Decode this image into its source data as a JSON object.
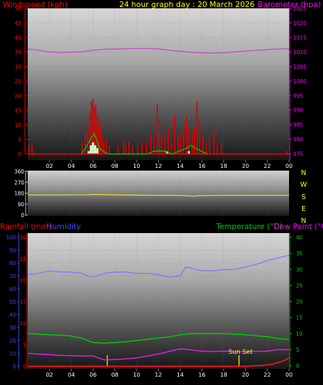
{
  "title": "24 hour graph day : 20 March 2026",
  "colors": {
    "wind": "#ff0000",
    "gust_fill": "#dd0000",
    "wind_avg": "#00cc00",
    "baro": "#cc44cc",
    "dir": "#dddd33",
    "rain": "#ff1111",
    "humidity": "#7777ff",
    "temp": "#00cc00",
    "dew": "#dd22dd",
    "sun": "#dddd00",
    "axis_red": "#ff0000",
    "axis_magenta": "#ff00ff",
    "axis_blue": "#4444ff",
    "axis_green": "#00cc00",
    "axis_yellow": "#ffff00",
    "text_white": "#ffffff"
  },
  "chart_data": [
    {
      "type": "bar",
      "name": "wind-baro",
      "left_label": "Windspeed (kph)",
      "right_label": "Barometer (hpa)",
      "x_ticks": [
        "02",
        "04",
        "06",
        "08",
        "10",
        "12",
        "14",
        "16",
        "18",
        "20",
        "22",
        "00"
      ],
      "x_range": [
        0,
        24
      ],
      "ylim_left": [
        0,
        50
      ],
      "yticks_left": [
        "0",
        "5",
        "10",
        "15",
        "20",
        "25",
        "30",
        "35",
        "40",
        "45",
        "50"
      ],
      "ylim_right": [
        973,
        1025
      ],
      "yticks_right": [
        "975",
        "980",
        "985",
        "990",
        "995",
        "1000",
        "1005",
        "1010",
        "1015",
        "1020",
        "1025"
      ],
      "gust": [
        [
          0.1,
          3
        ],
        [
          0.4,
          3
        ],
        [
          5.0,
          4
        ],
        [
          5.3,
          8
        ],
        [
          5.5,
          10
        ],
        [
          5.7,
          14
        ],
        [
          5.85,
          18
        ],
        [
          6.0,
          19
        ],
        [
          6.1,
          16
        ],
        [
          6.25,
          17
        ],
        [
          6.4,
          13
        ],
        [
          6.55,
          9
        ],
        [
          6.7,
          11
        ],
        [
          6.85,
          6
        ],
        [
          7.0,
          4
        ],
        [
          7.2,
          5
        ],
        [
          7.5,
          3
        ],
        [
          8.3,
          3
        ],
        [
          8.8,
          5
        ],
        [
          9.0,
          3
        ],
        [
          9.3,
          4
        ],
        [
          9.6,
          3
        ],
        [
          10.1,
          3
        ],
        [
          10.5,
          4
        ],
        [
          10.9,
          4
        ],
        [
          11.3,
          7
        ],
        [
          11.6,
          6
        ],
        [
          11.9,
          17
        ],
        [
          12.1,
          12
        ],
        [
          12.3,
          6
        ],
        [
          12.6,
          7
        ],
        [
          12.9,
          9
        ],
        [
          13.2,
          4
        ],
        [
          13.5,
          13
        ],
        [
          13.8,
          6
        ],
        [
          14.0,
          7
        ],
        [
          14.3,
          10
        ],
        [
          14.6,
          13
        ],
        [
          14.8,
          9
        ],
        [
          15.1,
          7
        ],
        [
          15.3,
          9
        ],
        [
          15.55,
          18
        ],
        [
          15.8,
          11
        ],
        [
          16.1,
          6
        ],
        [
          16.4,
          4
        ],
        [
          16.7,
          6
        ],
        [
          17.1,
          8
        ],
        [
          17.4,
          3
        ],
        [
          17.8,
          4
        ],
        [
          23.8,
          1
        ]
      ],
      "wind_avg": [
        [
          4.9,
          0
        ],
        [
          5.3,
          2
        ],
        [
          5.6,
          4
        ],
        [
          5.9,
          6
        ],
        [
          6.1,
          7
        ],
        [
          6.3,
          5
        ],
        [
          6.6,
          2
        ],
        [
          6.9,
          1
        ],
        [
          7.4,
          0
        ],
        [
          11.0,
          0
        ],
        [
          11.6,
          1
        ],
        [
          12.1,
          1
        ],
        [
          12.6,
          1
        ],
        [
          13.3,
          0
        ],
        [
          13.9,
          1
        ],
        [
          14.6,
          2
        ],
        [
          15.0,
          3
        ],
        [
          15.4,
          2
        ],
        [
          15.9,
          1
        ],
        [
          16.5,
          0
        ]
      ],
      "wind_low": [
        [
          5.6,
          1
        ],
        [
          5.8,
          3
        ],
        [
          6.0,
          4
        ],
        [
          6.2,
          3
        ],
        [
          6.4,
          2
        ],
        [
          12.8,
          1
        ],
        [
          14.8,
          1
        ]
      ],
      "barometer": [
        [
          0,
          1011
        ],
        [
          1,
          1010.6
        ],
        [
          2,
          1010
        ],
        [
          3,
          1009.8
        ],
        [
          4,
          1009.9
        ],
        [
          5,
          1010.1
        ],
        [
          6,
          1010.6
        ],
        [
          7,
          1010.9
        ],
        [
          8,
          1011
        ],
        [
          9,
          1011.1
        ],
        [
          10,
          1011.2
        ],
        [
          11,
          1011.2
        ],
        [
          12,
          1011
        ],
        [
          13,
          1010.6
        ],
        [
          14,
          1010.2
        ],
        [
          15,
          1009.9
        ],
        [
          16,
          1009.7
        ],
        [
          17,
          1009.6
        ],
        [
          18,
          1009.7
        ],
        [
          19,
          1010
        ],
        [
          20,
          1010.3
        ],
        [
          21,
          1010.6
        ],
        [
          22,
          1010.8
        ],
        [
          23,
          1011
        ],
        [
          24,
          1011.1
        ]
      ]
    },
    {
      "type": "line",
      "name": "wind-direction",
      "right_letters": [
        "N",
        "W",
        "S",
        "E",
        "N"
      ],
      "x_range": [
        0,
        24
      ],
      "ylim": [
        0,
        360
      ],
      "yticks": [
        "0",
        "90",
        "180",
        "270",
        "360"
      ],
      "direction": [
        [
          0,
          165
        ],
        [
          5.5,
          166
        ],
        [
          6,
          170
        ],
        [
          8,
          167
        ],
        [
          10,
          164
        ],
        [
          12,
          163
        ],
        [
          14,
          162
        ],
        [
          15.3,
          156
        ],
        [
          15.6,
          160
        ],
        [
          17,
          162
        ],
        [
          20,
          163
        ],
        [
          24,
          163
        ]
      ]
    },
    {
      "type": "line",
      "name": "rain-hum-temp",
      "rain_label": "Rainfall (mm)",
      "humidity_label": "Humidity",
      "temp_label": "Temperature (°C)",
      "dew_label": "Dew Point (°C)",
      "annotation": "Sun Set",
      "x_ticks": [
        "02",
        "04",
        "06",
        "08",
        "10",
        "12",
        "14",
        "16",
        "18",
        "20",
        "22",
        "00"
      ],
      "x_range": [
        0,
        24
      ],
      "humidity_ylim": [
        0,
        100
      ],
      "humidity_yticks": [
        "0",
        "10",
        "20",
        "30",
        "40",
        "50",
        "60",
        "70",
        "80",
        "90",
        "100"
      ],
      "rain_ylim": [
        0,
        30
      ],
      "rain_yticks": [
        "0",
        "5",
        "10",
        "15",
        "20",
        "25",
        "30"
      ],
      "temp_ylim": [
        -2,
        40
      ],
      "temp_yticks": [
        "0",
        "5",
        "10",
        "15",
        "20",
        "25",
        "30",
        "35",
        "40"
      ],
      "sun_marks": [
        7.3,
        19.4
      ],
      "humidity": [
        [
          0,
          71
        ],
        [
          1,
          72
        ],
        [
          2,
          74
        ],
        [
          3,
          73
        ],
        [
          4,
          73
        ],
        [
          5,
          72
        ],
        [
          5.5,
          70
        ],
        [
          6,
          69
        ],
        [
          7,
          72
        ],
        [
          8,
          73
        ],
        [
          9,
          73
        ],
        [
          10,
          72
        ],
        [
          11,
          72
        ],
        [
          12,
          71
        ],
        [
          13,
          69
        ],
        [
          14,
          70
        ],
        [
          14.5,
          77
        ],
        [
          15,
          76
        ],
        [
          16,
          74
        ],
        [
          17,
          74
        ],
        [
          18,
          75
        ],
        [
          19,
          75
        ],
        [
          20,
          77
        ],
        [
          21,
          79
        ],
        [
          22,
          82
        ],
        [
          23,
          84
        ],
        [
          24,
          86
        ]
      ],
      "temperature": [
        [
          0,
          10
        ],
        [
          1,
          9.8
        ],
        [
          2,
          9.6
        ],
        [
          3,
          9.5
        ],
        [
          4,
          9.2
        ],
        [
          5,
          8.5
        ],
        [
          6,
          7.2
        ],
        [
          7,
          7
        ],
        [
          8,
          7.2
        ],
        [
          9,
          7.4
        ],
        [
          10,
          7.8
        ],
        [
          11,
          8.2
        ],
        [
          12,
          8.6
        ],
        [
          13,
          8.9
        ],
        [
          14,
          9.6
        ],
        [
          15,
          10
        ],
        [
          16,
          10
        ],
        [
          17,
          10
        ],
        [
          18,
          10
        ],
        [
          19,
          9.8
        ],
        [
          20,
          9.6
        ],
        [
          21,
          9.3
        ],
        [
          22,
          9
        ],
        [
          23,
          8.4
        ],
        [
          24,
          8.2
        ]
      ],
      "dew_point": [
        [
          0,
          3.8
        ],
        [
          1,
          3.6
        ],
        [
          2,
          3.4
        ],
        [
          3,
          3.2
        ],
        [
          4,
          3.1
        ],
        [
          5,
          3.0
        ],
        [
          6,
          3.0
        ],
        [
          7,
          1.8
        ],
        [
          8,
          1.9
        ],
        [
          9,
          2.1
        ],
        [
          10,
          2.4
        ],
        [
          11,
          3.0
        ],
        [
          12,
          3.6
        ],
        [
          13,
          4.4
        ],
        [
          14,
          5.2
        ],
        [
          15,
          4.9
        ],
        [
          16,
          4.5
        ],
        [
          17,
          4.4
        ],
        [
          18,
          4.5
        ],
        [
          19,
          4.4
        ],
        [
          20,
          4.3
        ],
        [
          21,
          4.4
        ],
        [
          22,
          4.5
        ],
        [
          23,
          5.0
        ],
        [
          24,
          4.9
        ]
      ],
      "rainfall": [
        [
          0,
          0
        ],
        [
          20,
          0
        ],
        [
          21.5,
          0.2
        ],
        [
          22.5,
          0.5
        ],
        [
          23.2,
          1.0
        ],
        [
          23.6,
          1.4
        ],
        [
          24,
          2.0
        ]
      ]
    }
  ]
}
